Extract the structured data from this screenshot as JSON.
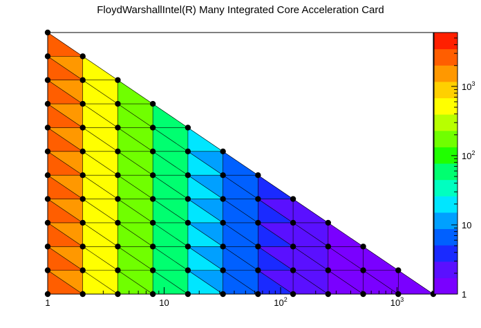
{
  "chart_data": {
    "type": "heatmap",
    "title": "FloydWarshallIntel(R) Many Integrated Core Acceleration Card",
    "xlabel": "",
    "ylabel": "",
    "x_scale": "log2",
    "y_scale": "log2",
    "z_scale": "log10",
    "x_log2_range": [
      0,
      11
    ],
    "y_log2_range": [
      0,
      11
    ],
    "z_range": [
      1,
      6000
    ],
    "x_ticks": [
      {
        "base": "1",
        "exp": ""
      },
      {
        "base": "10",
        "exp": ""
      },
      {
        "base": "10",
        "exp": "2"
      },
      {
        "base": "10",
        "exp": "3"
      }
    ],
    "z_ticks": [
      {
        "base": "1",
        "exp": ""
      },
      {
        "base": "10",
        "exp": ""
      },
      {
        "base": "10",
        "exp": "2"
      },
      {
        "base": "10",
        "exp": "3"
      }
    ],
    "z_palette": [
      "#7a00ff",
      "#5a10ff",
      "#1a2aff",
      "#0060ff",
      "#00a0ff",
      "#00e6ff",
      "#00ffc0",
      "#00ff70",
      "#20ff00",
      "#70ff00",
      "#b8ff00",
      "#ffff00",
      "#ffd000",
      "#ff9800",
      "#ff5e00",
      "#ff2000"
    ],
    "grid_points_note": "points exist for log2(x)+log2(y) <= 11",
    "values_log10z_by_x": [
      3.5,
      3.0,
      2.4,
      2.0,
      1.5,
      1.0,
      0.6,
      0.4,
      0.2,
      0.1,
      0.05,
      0.02
    ]
  }
}
